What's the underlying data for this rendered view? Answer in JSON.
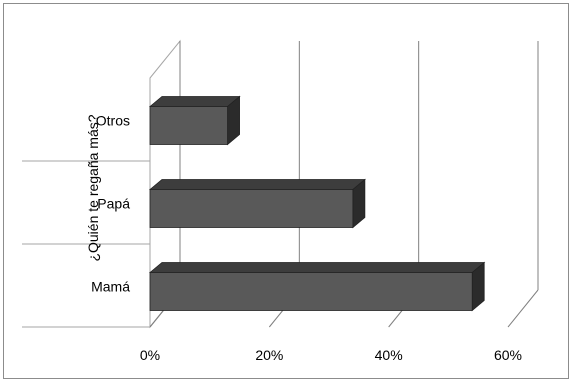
{
  "chart_data": {
    "type": "bar",
    "orientation": "horizontal",
    "style": "3d",
    "categories": [
      "Mamá",
      "Papá",
      "Otros"
    ],
    "values": [
      0.54,
      0.34,
      0.13
    ],
    "value_unit": "fraction",
    "xlim": [
      0,
      0.6
    ],
    "xticks": [
      0,
      0.2,
      0.4,
      0.6
    ],
    "xtick_labels": [
      "0%",
      "20%",
      "40%",
      "60%"
    ],
    "ylabel": "¿Quién te regaña más?",
    "xlabel": "",
    "title": "",
    "grid": true,
    "bar_color": "#595959"
  }
}
